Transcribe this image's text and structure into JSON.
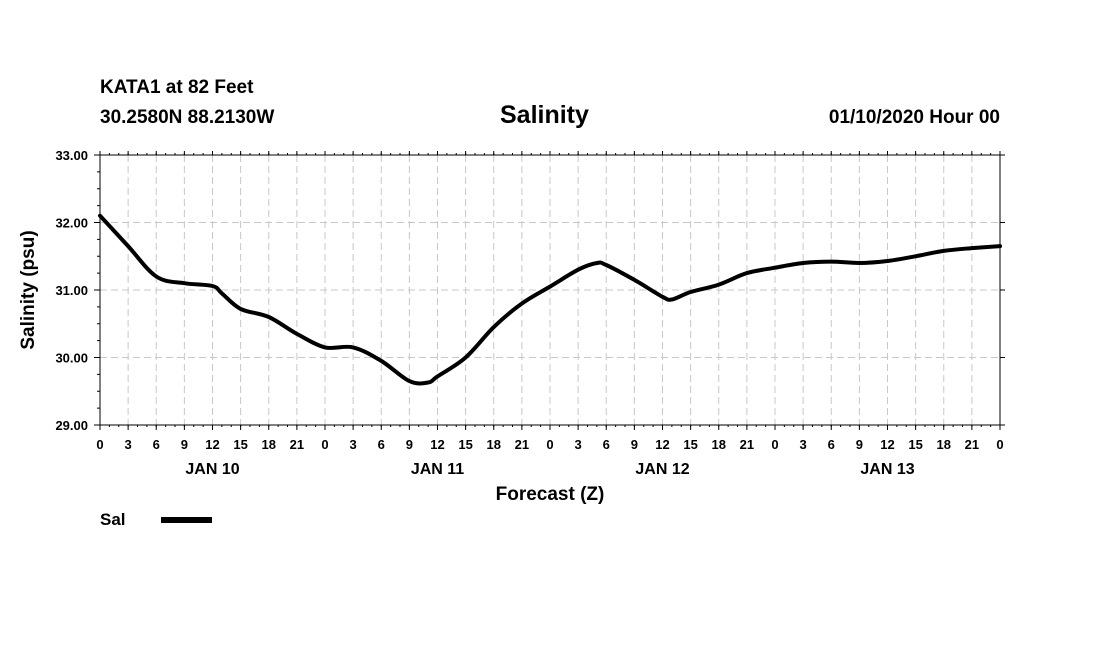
{
  "header": {
    "station": "KATA1 at 82 Feet",
    "coords": "30.2580N 88.2130W",
    "title": "Salinity",
    "timestamp": "01/10/2020 Hour 00"
  },
  "chart_data": {
    "type": "line",
    "title": "Salinity",
    "xlabel": "Forecast (Z)",
    "ylabel": "Salinity (psu)",
    "ylim": [
      29.0,
      33.0
    ],
    "yticks": [
      "29.00",
      "30.00",
      "31.00",
      "32.00",
      "33.00"
    ],
    "yticks_values": [
      29,
      30,
      31,
      32,
      33
    ],
    "xlim": [
      0,
      96
    ],
    "xtick_labels": [
      "0",
      "3",
      "6",
      "9",
      "12",
      "15",
      "18",
      "21",
      "0",
      "3",
      "6",
      "9",
      "12",
      "15",
      "18",
      "21",
      "0",
      "3",
      "6",
      "9",
      "12",
      "15",
      "18",
      "21",
      "0",
      "3",
      "6",
      "9",
      "12",
      "15",
      "18",
      "21",
      "0"
    ],
    "day_labels": [
      {
        "label": "JAN 10",
        "hour": 12
      },
      {
        "label": "JAN 11",
        "hour": 36
      },
      {
        "label": "JAN 12",
        "hour": 60
      },
      {
        "label": "JAN 13",
        "hour": 84
      }
    ],
    "grid": true,
    "legend": {
      "placement": "bottom-left",
      "entries": [
        "Sal"
      ]
    },
    "series": [
      {
        "name": "Sal",
        "color": "#000000",
        "x": [
          0,
          3,
          6,
          9,
          12,
          13,
          15,
          18,
          21,
          24,
          27,
          30,
          33,
          35,
          36,
          39,
          42,
          45,
          48,
          51,
          53,
          54,
          57,
          60,
          61,
          63,
          66,
          69,
          72,
          75,
          78,
          81,
          84,
          87,
          90,
          93,
          96
        ],
        "values": [
          32.1,
          31.65,
          31.2,
          31.1,
          31.06,
          30.95,
          30.72,
          30.6,
          30.35,
          30.15,
          30.15,
          29.95,
          29.65,
          29.63,
          29.72,
          30.0,
          30.45,
          30.8,
          31.05,
          31.3,
          31.4,
          31.37,
          31.15,
          30.9,
          30.86,
          30.97,
          31.08,
          31.25,
          31.33,
          31.4,
          31.42,
          31.4,
          31.43,
          31.5,
          31.58,
          31.62,
          31.65
        ]
      }
    ]
  }
}
